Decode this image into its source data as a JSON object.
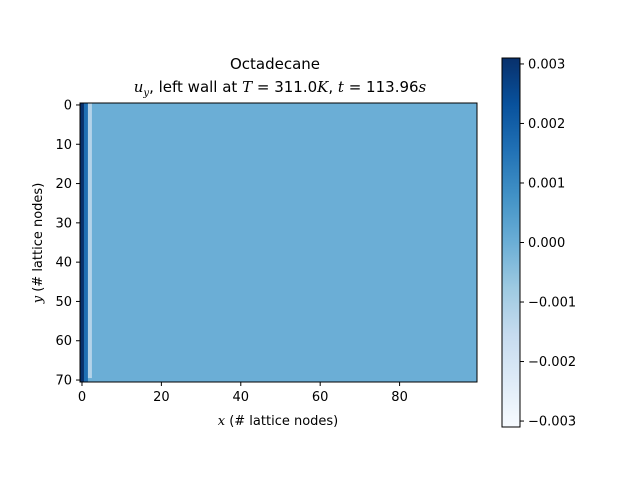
{
  "chart_data": {
    "type": "heatmap",
    "title_line1": "Octadecane",
    "title_line2": {
      "var": "u",
      "sub": "y",
      "mid": ", left wall at ",
      "T_sym": "T",
      "T_val": " = 311.0",
      "T_unit": "K",
      "sep": ", ",
      "t_sym": "t",
      "t_val": " = 113.96",
      "t_unit": "s"
    },
    "xlabel": {
      "sym": "x",
      "text": " (# lattice nodes)"
    },
    "ylabel": {
      "sym": "y",
      "text": " (# lattice nodes)"
    },
    "xlim": [
      -0.5,
      99.5
    ],
    "ylim": [
      70.5,
      -0.5
    ],
    "xticks": [
      0,
      20,
      40,
      60,
      80
    ],
    "xtick_labels": [
      "0",
      "20",
      "40",
      "60",
      "80"
    ],
    "yticks": [
      0,
      10,
      20,
      30,
      40,
      50,
      60,
      70
    ],
    "ytick_labels": [
      "0",
      "10",
      "20",
      "30",
      "40",
      "50",
      "60",
      "70"
    ],
    "colormap": "Blues",
    "vmin": -0.0031,
    "vmax": 0.0031,
    "background_value": 0.0,
    "columns": [
      {
        "x": 0,
        "value": 0.0031,
        "y_from": 0,
        "y_to": 70
      },
      {
        "x": 1,
        "value": 0.0016,
        "y_from": 0,
        "y_to": 70
      },
      {
        "x": 2,
        "value": -0.0012,
        "y_from": 0,
        "y_to": 69
      }
    ],
    "colorbar_ticks": [
      0.003,
      0.002,
      0.001,
      0.0,
      -0.001,
      -0.002,
      -0.003
    ],
    "colorbar_tick_labels": [
      "0.003",
      "0.002",
      "0.001",
      "0.000",
      "−0.001",
      "−0.002",
      "−0.003"
    ]
  }
}
